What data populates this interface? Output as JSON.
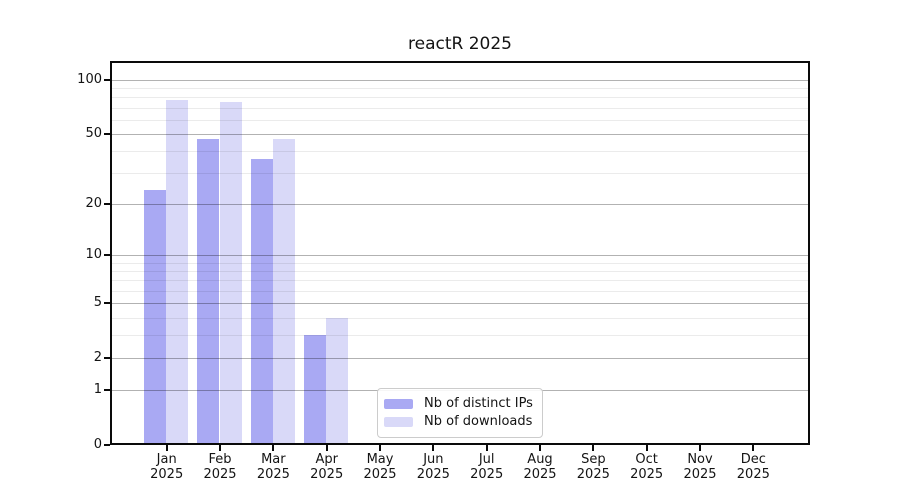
{
  "title": "reactR 2025",
  "chart_data": {
    "type": "bar",
    "title": "reactR 2025",
    "categories": [
      "Jan",
      "Feb",
      "Mar",
      "Apr",
      "May",
      "Jun",
      "Jul",
      "Aug",
      "Sep",
      "Oct",
      "Nov",
      "Dec"
    ],
    "x_tick_year": "2025",
    "series": [
      {
        "name": "Nb of distinct IPs",
        "color": "#a9a9f3",
        "values": [
          24,
          47,
          36,
          3,
          null,
          null,
          null,
          null,
          null,
          null,
          null,
          null
        ]
      },
      {
        "name": "Nb of downloads",
        "color": "#d9d9f8",
        "values": [
          77,
          75,
          47,
          4,
          null,
          null,
          null,
          null,
          null,
          null,
          null,
          null
        ]
      }
    ],
    "yscale": "log1p",
    "ylim": [
      0,
      127
    ],
    "yticks": [
      0,
      1,
      2,
      5,
      10,
      20,
      50,
      100
    ],
    "minor_yticks": [
      3,
      4,
      6,
      7,
      8,
      9,
      30,
      40,
      60,
      70,
      80,
      90
    ],
    "grid": "horizontal",
    "legend_position": "lower center"
  },
  "colors": {
    "spine": "#0a0a0a",
    "major_grid": "rgba(0,0,0,0.30)",
    "minor_grid": "rgba(0,0,0,0.08)",
    "background": "#ffffff"
  }
}
